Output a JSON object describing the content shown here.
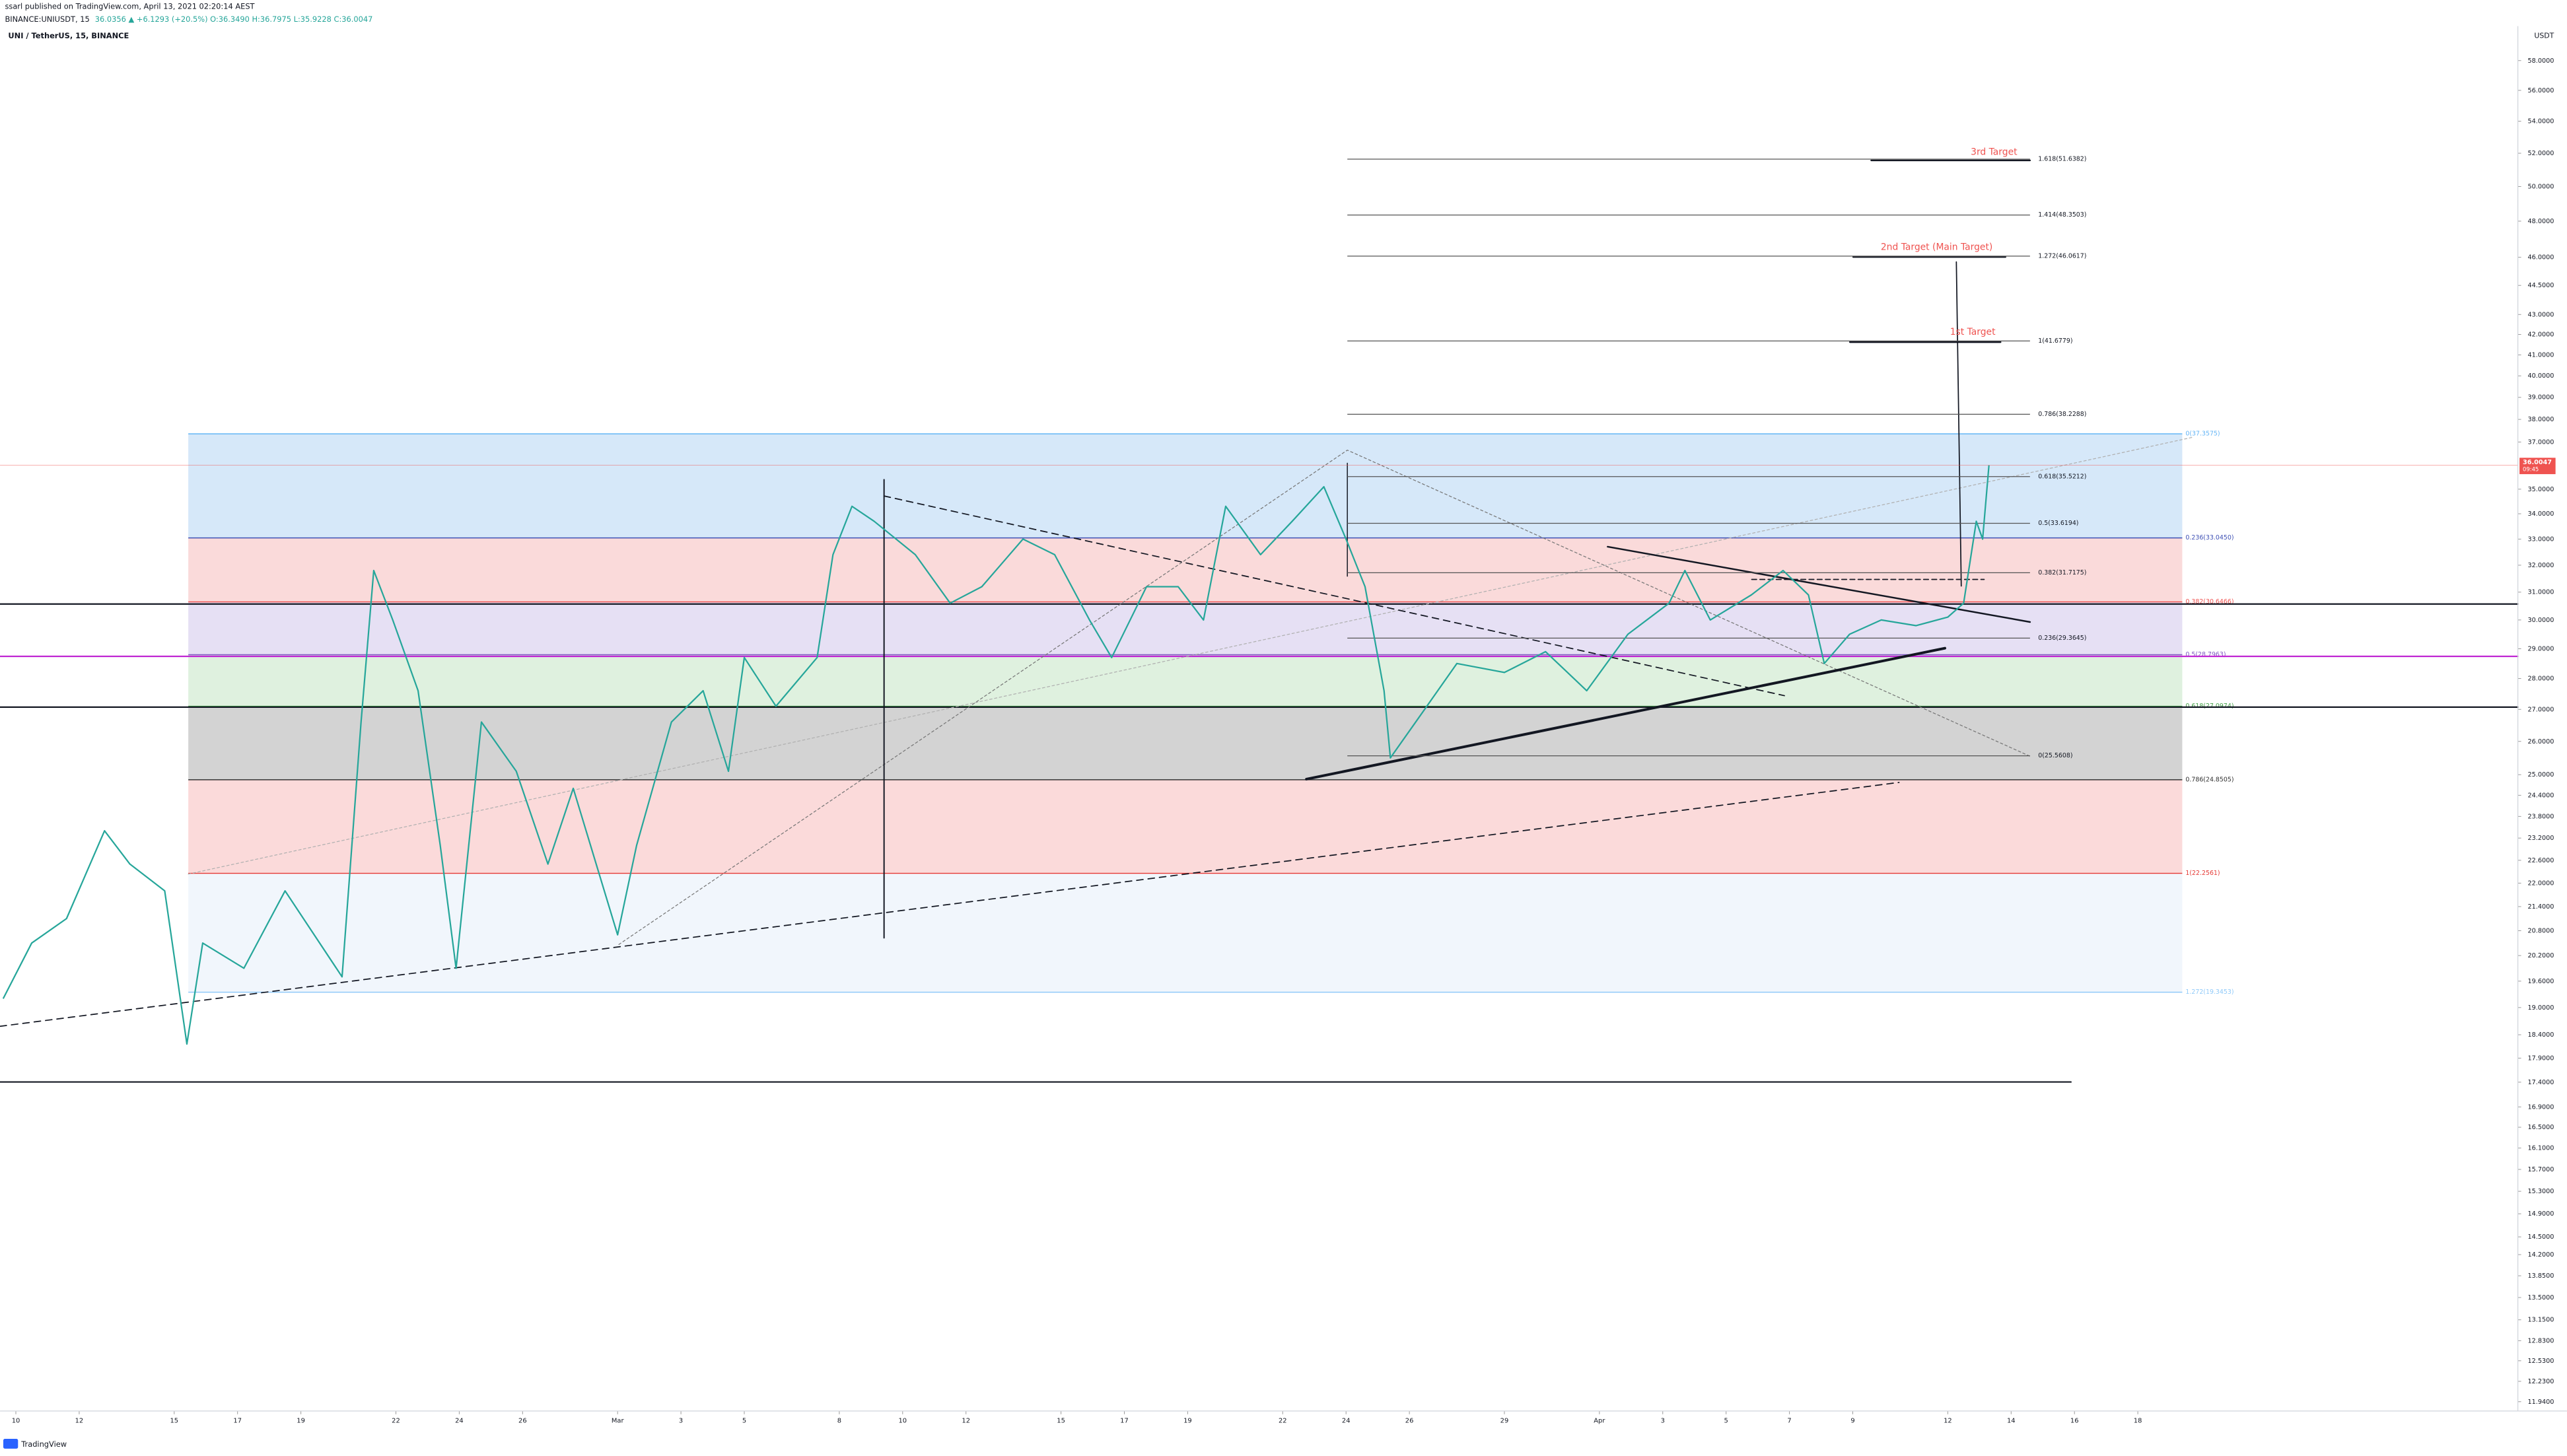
{
  "header": {
    "publisher": "ssarl published on TradingView.com, April 13, 2021 02:20:14 AEST",
    "symbol": "BINANCE:UNIUSDT, 15",
    "quote": "36.0356 ▲ +6.1293 (+20.5%) O:36.3490 H:36.7975 L:35.9228 C:36.0047"
  },
  "footer": {
    "brand": "TradingView"
  },
  "chart_data": {
    "type": "line",
    "title": "UNI / TetherUS, 15, BINANCE",
    "y_unit": "USDT",
    "log_scale": true,
    "color": "#26a69a",
    "x": [
      -0.4,
      0.5,
      1.6,
      2.8,
      3.6,
      4.7,
      5.4,
      5.9,
      7.2,
      8.5,
      10.3,
      10.9,
      11.3,
      11.9,
      12.7,
      13.4,
      13.9,
      14.7,
      15.8,
      16.8,
      17.6,
      19.0,
      19.6,
      20.7,
      21.7,
      22.5,
      23.0,
      24.0,
      25.3,
      25.8,
      26.4,
      27.1,
      28.4,
      29.5,
      30.5,
      31.8,
      32.8,
      33.9,
      34.6,
      35.7,
      36.7,
      37.5,
      38.2,
      39.3,
      40.3,
      41.3,
      42.0,
      42.6,
      43.2,
      43.4,
      44.2,
      45.5,
      47.0,
      48.3,
      49.6,
      50.9,
      52.2,
      52.7,
      53.5,
      54.8,
      55.8,
      56.6,
      57.1,
      57.9,
      58.9,
      60.0,
      61.0,
      61.5,
      61.9,
      62.1,
      62.3
    ],
    "values": [
      19.2,
      20.5,
      21.1,
      23.4,
      22.5,
      21.8,
      18.2,
      20.5,
      19.9,
      21.8,
      19.7,
      26.6,
      31.8,
      30.0,
      27.6,
      23.0,
      19.9,
      26.6,
      25.1,
      22.5,
      24.6,
      20.7,
      23.0,
      26.6,
      27.6,
      25.1,
      28.7,
      27.1,
      28.7,
      32.4,
      34.3,
      33.7,
      32.4,
      30.6,
      31.2,
      33.0,
      32.4,
      30.0,
      28.7,
      31.2,
      31.2,
      30.0,
      34.3,
      32.4,
      33.7,
      35.1,
      33.0,
      31.2,
      27.6,
      25.5,
      26.6,
      28.5,
      28.2,
      28.9,
      27.6,
      29.5,
      30.6,
      31.8,
      30.0,
      30.9,
      31.8,
      30.9,
      28.5,
      29.5,
      30.0,
      29.8,
      30.1,
      30.6,
      33.7,
      33.0,
      36.0
    ],
    "xlim": [
      -0.5,
      79
    ],
    "xticks": [
      {
        "value": 0,
        "label": "10"
      },
      {
        "value": 2,
        "label": "12"
      },
      {
        "value": 5,
        "label": "15"
      },
      {
        "value": 7,
        "label": "17"
      },
      {
        "value": 9,
        "label": "19"
      },
      {
        "value": 12,
        "label": "22"
      },
      {
        "value": 14,
        "label": "24"
      },
      {
        "value": 16,
        "label": "26"
      },
      {
        "value": 19,
        "label": "Mar"
      },
      {
        "value": 21,
        "label": "3"
      },
      {
        "value": 23,
        "label": "5"
      },
      {
        "value": 26,
        "label": "8"
      },
      {
        "value": 28,
        "label": "10"
      },
      {
        "value": 30,
        "label": "12"
      },
      {
        "value": 33,
        "label": "15"
      },
      {
        "value": 35,
        "label": "17"
      },
      {
        "value": 37,
        "label": "19"
      },
      {
        "value": 40,
        "label": "22"
      },
      {
        "value": 42,
        "label": "24"
      },
      {
        "value": 44,
        "label": "26"
      },
      {
        "value": 47,
        "label": "29"
      },
      {
        "value": 50,
        "label": "Apr"
      },
      {
        "value": 52,
        "label": "3"
      },
      {
        "value": 54,
        "label": "5"
      },
      {
        "value": 56,
        "label": "7"
      },
      {
        "value": 58,
        "label": "9"
      },
      {
        "value": 61,
        "label": "12"
      },
      {
        "value": 63,
        "label": "14"
      },
      {
        "value": 65,
        "label": "16"
      },
      {
        "value": 67,
        "label": "18"
      }
    ],
    "ylim": [
      11.81,
      58.79
    ],
    "yticks": [
      {
        "value": 58,
        "label": "58.0000"
      },
      {
        "value": 56,
        "label": "56.0000"
      },
      {
        "value": 54,
        "label": "54.0000"
      },
      {
        "value": 52,
        "label": "52.0000"
      },
      {
        "value": 50,
        "label": "50.0000"
      },
      {
        "value": 48,
        "label": "48.0000"
      },
      {
        "value": 46,
        "label": "46.0000"
      },
      {
        "value": 44.5,
        "label": "44.5000"
      },
      {
        "value": 43,
        "label": "43.0000"
      },
      {
        "value": 42,
        "label": "42.0000"
      },
      {
        "value": 41,
        "label": "41.0000"
      },
      {
        "value": 40,
        "label": "40.0000"
      },
      {
        "value": 39,
        "label": "39.0000"
      },
      {
        "value": 38,
        "label": "38.0000"
      },
      {
        "value": 37,
        "label": "37.0000"
      },
      {
        "value": 35,
        "label": "35.0000"
      },
      {
        "value": 34,
        "label": "34.0000"
      },
      {
        "value": 33,
        "label": "33.0000"
      },
      {
        "value": 32,
        "label": "32.0000"
      },
      {
        "value": 31,
        "label": "31.0000"
      },
      {
        "value": 30,
        "label": "30.0000"
      },
      {
        "value": 29,
        "label": "29.0000"
      },
      {
        "value": 28,
        "label": "28.0000"
      },
      {
        "value": 27,
        "label": "27.0000"
      },
      {
        "value": 26,
        "label": "26.0000"
      },
      {
        "value": 25,
        "label": "25.0000"
      },
      {
        "value": 24.4,
        "label": "24.4000"
      },
      {
        "value": 23.8,
        "label": "23.8000"
      },
      {
        "value": 23.2,
        "label": "23.2000"
      },
      {
        "value": 22.6,
        "label": "22.6000"
      },
      {
        "value": 22,
        "label": "22.0000"
      },
      {
        "value": 21.4,
        "label": "21.4000"
      },
      {
        "value": 20.8,
        "label": "20.8000"
      },
      {
        "value": 20.2,
        "label": "20.2000"
      },
      {
        "value": 19.6,
        "label": "19.6000"
      },
      {
        "value": 19,
        "label": "19.0000"
      },
      {
        "value": 18.4,
        "label": "18.4000"
      },
      {
        "value": 17.9,
        "label": "17.9000"
      },
      {
        "value": 17.4,
        "label": "17.4000"
      },
      {
        "value": 16.9,
        "label": "16.9000"
      },
      {
        "value": 16.5,
        "label": "16.5000"
      },
      {
        "value": 16.1,
        "label": "16.1000"
      },
      {
        "value": 15.7,
        "label": "15.7000"
      },
      {
        "value": 15.3,
        "label": "15.3000"
      },
      {
        "value": 14.9,
        "label": "14.9000"
      },
      {
        "value": 14.5,
        "label": "14.5000"
      },
      {
        "value": 14.2,
        "label": "14.2000"
      },
      {
        "value": 13.85,
        "label": "13.8500"
      },
      {
        "value": 13.5,
        "label": "13.5000"
      },
      {
        "value": 13.15,
        "label": "13.1500"
      },
      {
        "value": 12.83,
        "label": "12.8300"
      },
      {
        "value": 12.53,
        "label": "12.5300"
      },
      {
        "value": 12.23,
        "label": "12.2300"
      },
      {
        "value": 11.94,
        "label": "11.9400"
      }
    ],
    "last_price": {
      "value": 36.0047,
      "label": "36.0047",
      "countdown": "09:45",
      "color": "#ef5350"
    },
    "fib_extension": {
      "color": "#555555",
      "levels": [
        {
          "value": 51.6382,
          "label": "1.618(51.6382)"
        },
        {
          "value": 48.3503,
          "label": "1.414(48.3503)"
        },
        {
          "value": 46.0617,
          "label": "1.272(46.0617)"
        },
        {
          "value": 41.6779,
          "label": "1(41.6779)"
        },
        {
          "value": 38.2288,
          "label": "0.786(38.2288)"
        },
        {
          "value": 35.5212,
          "label": "0.618(35.5212)"
        },
        {
          "value": 33.6194,
          "label": "0.5(33.6194)"
        },
        {
          "value": 31.7175,
          "label": "0.382(31.7175)"
        },
        {
          "value": 29.3645,
          "label": "0.236(29.3645)"
        },
        {
          "value": 25.5608,
          "label": "0(25.5608)"
        }
      ]
    },
    "fib_retracement": {
      "levels": [
        {
          "value": 37.3575,
          "label": "0(37.3575)",
          "color": "#64b5f6"
        },
        {
          "value": 33.045,
          "label": "0.236(33.0450)",
          "color": "#3f51b5"
        },
        {
          "value": 30.6466,
          "label": "0.382(30.6466)",
          "color": "#ef5350"
        },
        {
          "value": 28.7963,
          "label": "0.5(28.7963)",
          "color": "#7e57c2"
        },
        {
          "value": 27.0974,
          "label": "0.618(27.0974)",
          "color": "#43a047"
        },
        {
          "value": 24.8505,
          "label": "0.786(24.8505)",
          "color": "#333333"
        },
        {
          "value": 22.2561,
          "label": "1(22.2561)",
          "color": "#e53935"
        },
        {
          "value": 19.3453,
          "label": "1.272(19.3453)",
          "color": "#90caf9"
        }
      ],
      "band_colors": [
        "#cfe4f8",
        "#f9d3d3",
        "#e2daf2",
        "#d9eed9",
        "#cbcbcb",
        "#fad4d4",
        "#eef4fc"
      ]
    },
    "targets": {
      "color": "#ef5350",
      "labels": [
        "3rd Target",
        "2nd Target (Main Target)",
        "1st Target"
      ]
    }
  }
}
